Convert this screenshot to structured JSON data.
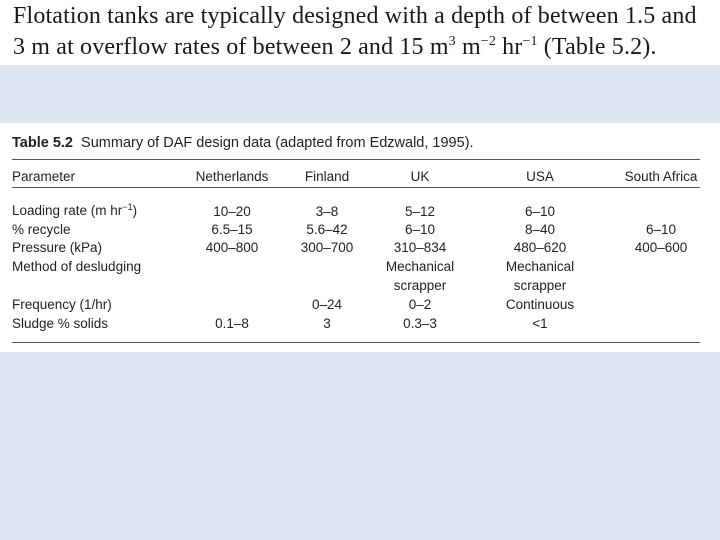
{
  "intro": {
    "line1": "Flotation tanks are typically designed with a depth of between 1.5 and",
    "line2_a": "3 m at overflow rates of between 2 and 15 m",
    "line2_sup1": "3",
    "line2_b": " m",
    "line2_sup2": "−2",
    "line2_c": " hr",
    "line2_sup3": "−1",
    "line2_d": " (Table 5.2)."
  },
  "table": {
    "caption_label": "Table 5.2",
    "caption_text": "Summary of DAF design data (adapted from Edzwald, 1995).",
    "headers": [
      "Parameter",
      "Netherlands",
      "Finland",
      "UK",
      "USA",
      "South Africa"
    ],
    "rows": [
      {
        "param": "Loading rate (m hr",
        "param_sup": "−1",
        "param_end": ")",
        "nl": "10–20",
        "fi": "3–8",
        "uk": "5–12",
        "us": "6–10",
        "sa": ""
      },
      {
        "param": "% recycle",
        "nl": "6.5–15",
        "fi": "5.6–42",
        "uk": "6–10",
        "us": "8–40",
        "sa": "6–10"
      },
      {
        "param": "Pressure (kPa)",
        "nl": "400–800",
        "fi": "300–700",
        "uk": "310–834",
        "us": "480–620",
        "sa": "400–600"
      },
      {
        "param": "Method of desludging",
        "nl": "",
        "fi": "",
        "uk": "Mechanical",
        "uk2": "scrapper",
        "us": "Mechanical",
        "us2": "scrapper",
        "sa": ""
      },
      {
        "param": "Frequency (1/hr)",
        "nl": "",
        "fi": "0–24",
        "uk": "0–2",
        "us": "Continuous",
        "sa": ""
      },
      {
        "param": "Sludge % solids",
        "nl": "0.1–8",
        "fi": "3",
        "uk": "0.3–3",
        "us": "<1",
        "sa": ""
      }
    ]
  },
  "colors": {
    "background": "#dce6f2",
    "panel": "#ffffff",
    "text": "#222222"
  }
}
